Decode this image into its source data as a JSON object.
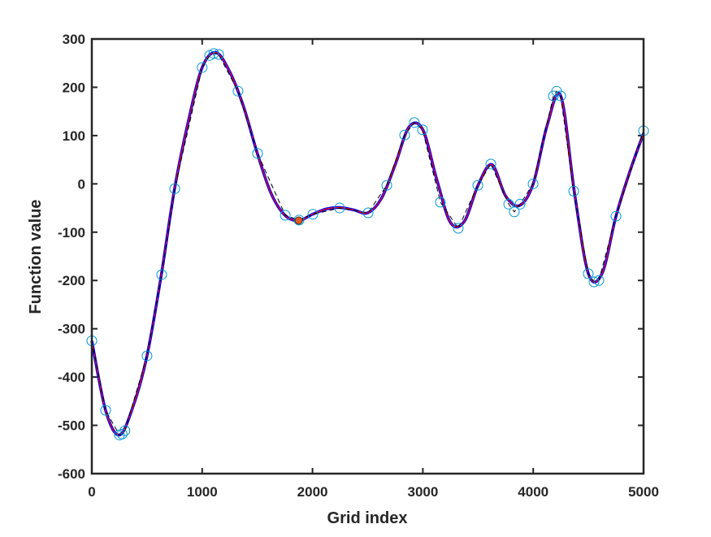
{
  "chart_data": {
    "type": "line",
    "xlabel": "Grid index",
    "ylabel": "Function value",
    "xlim": [
      0,
      5000
    ],
    "xticks": [
      0,
      1000,
      2000,
      3000,
      4000,
      5000
    ],
    "ylim": [
      -600,
      300
    ],
    "yticks": [
      -600,
      -500,
      -400,
      -300,
      -200,
      -100,
      0,
      100,
      200,
      300
    ],
    "box": true,
    "series": [
      {
        "color": "#0000ff",
        "width": 3.5,
        "dash": "solid",
        "marker": "none",
        "x": [
          0,
          125,
          250,
          375,
          500,
          625,
          750,
          875,
          1000,
          1125,
          1250,
          1375,
          1500,
          1625,
          1750,
          1875,
          2000,
          2125,
          2250,
          2375,
          2500,
          2625,
          2750,
          2875,
          3000,
          3125,
          3250,
          3375,
          3500,
          3625,
          3750,
          3875,
          4000,
          4125,
          4250,
          4375,
          4500,
          4625,
          4750,
          4875,
          5000
        ],
        "values": [
          -325,
          -469,
          -520,
          -460,
          -356,
          -195,
          -10,
          130,
          241,
          272,
          232,
          160,
          63,
          -20,
          -65,
          -76,
          -63,
          -52,
          -49,
          -54,
          -60,
          -30,
          40,
          118,
          112,
          10,
          -80,
          -78,
          -3,
          40,
          -25,
          -45,
          0,
          120,
          182,
          -20,
          -186,
          -185,
          -67,
          25,
          105
        ]
      },
      {
        "color": "#ff0000",
        "width": 1.2,
        "dash": "solid",
        "marker": "none",
        "x": [
          0,
          125,
          250,
          375,
          500,
          625,
          750,
          875,
          1000,
          1125,
          1250,
          1375,
          1500,
          1625,
          1750,
          1875,
          2000,
          2125,
          2250,
          2375,
          2500,
          2625,
          2750,
          2875,
          3000,
          3125,
          3250,
          3375,
          3500,
          3625,
          3750,
          3875,
          4000,
          4125,
          4250,
          4375,
          4500,
          4625,
          4750,
          4875,
          5000
        ],
        "values": [
          -325,
          -469,
          -520,
          -460,
          -356,
          -195,
          -10,
          130,
          241,
          272,
          232,
          160,
          63,
          -20,
          -65,
          -76,
          -63,
          -52,
          -49,
          -54,
          -60,
          -30,
          40,
          118,
          112,
          10,
          -80,
          -78,
          -3,
          40,
          -25,
          -45,
          0,
          120,
          182,
          -20,
          -186,
          -185,
          -67,
          25,
          105
        ]
      },
      {
        "color": "#0096d6",
        "width": 1,
        "dash": "dashed",
        "line_color": "#000000",
        "marker": "circle",
        "x": [
          0,
          125,
          250,
          275,
          300,
          500,
          633,
          751,
          1000,
          1068,
          1105,
          1149,
          1325,
          1502,
          1753,
          1878,
          2003,
          2246,
          2504,
          2673,
          2835,
          2923,
          2997,
          3159,
          3321,
          3498,
          3616,
          3778,
          3829,
          3881,
          3999,
          4183,
          4212,
          4249,
          4367,
          4499,
          4551,
          4595,
          4750,
          5000
        ],
        "values": [
          -325,
          -469,
          -520,
          -518,
          -511,
          -356,
          -188,
          -10,
          241,
          266,
          270,
          268,
          192,
          63,
          -65,
          -75,
          -63,
          -50,
          -60,
          -3,
          101,
          127,
          112,
          -38,
          -92,
          -3,
          41,
          -42,
          -58,
          -42,
          0,
          182,
          192,
          182,
          -15,
          -186,
          -203,
          -200,
          -67,
          110
        ]
      },
      {
        "color": "#e8571e",
        "width": 1,
        "dash": "none",
        "marker": "filled",
        "x": [
          1875
        ],
        "values": [
          -76
        ]
      }
    ]
  }
}
